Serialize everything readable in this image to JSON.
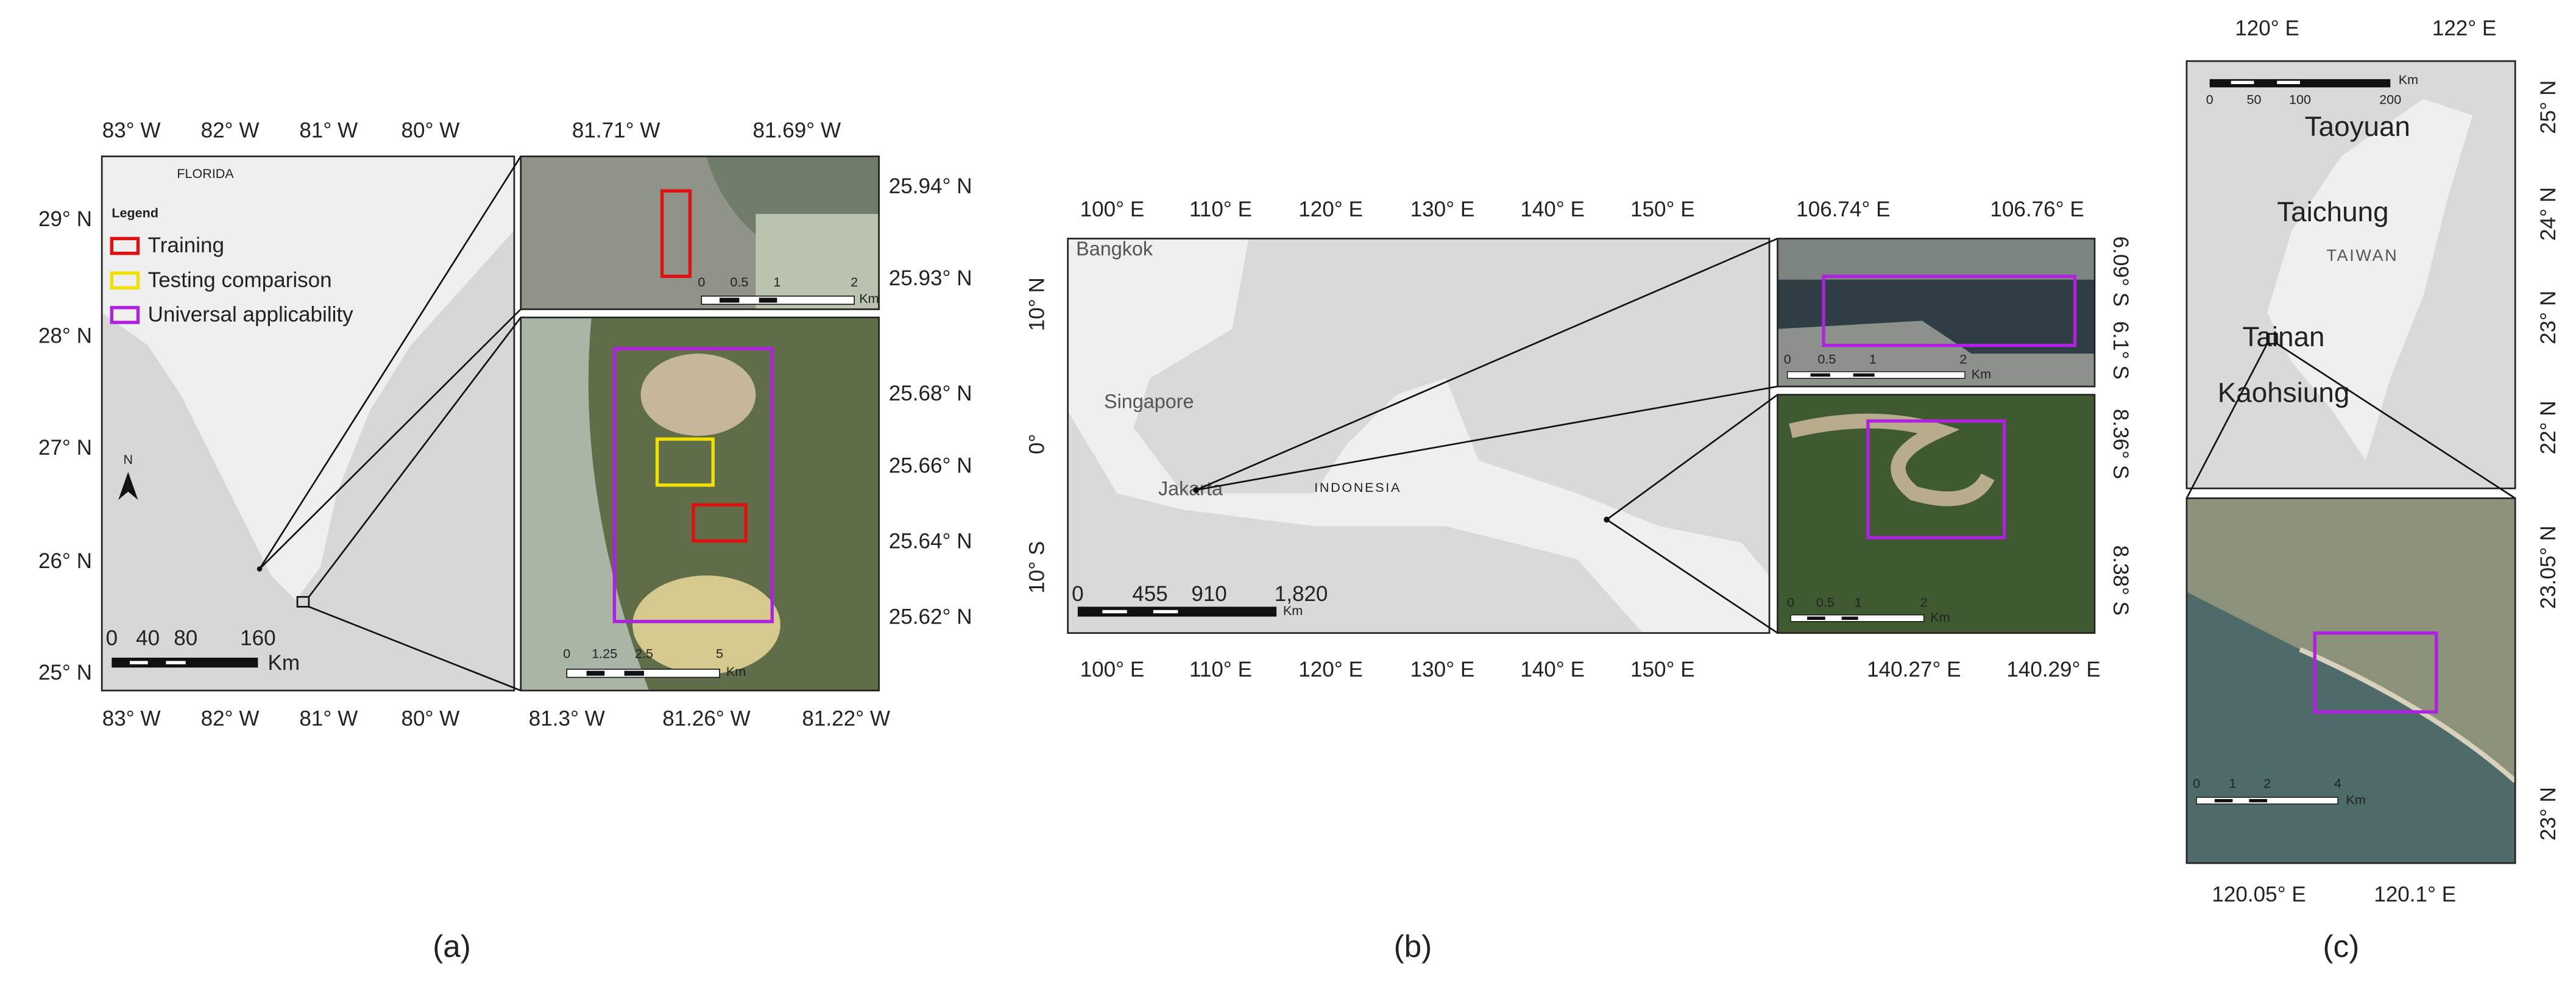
{
  "panels": {
    "a": {
      "caption": "(a)",
      "main": {
        "top_ticks": [
          "83° W",
          "82° W",
          "81° W",
          "80° W"
        ],
        "left_ticks": [
          "29° N",
          "28° N",
          "27° N",
          "26° N",
          "25° N"
        ],
        "bottom_ticks": [
          "83° W",
          "82° W",
          "81° W",
          "80° W"
        ],
        "place_labels": [
          "FLORIDA"
        ],
        "north": "N",
        "scale_bar": [
          "0",
          "40",
          "80",
          "160"
        ],
        "scale_unit": "Km",
        "legend": {
          "title": "Legend",
          "items": [
            "Training",
            "Testing comparison",
            "Universal applicability"
          ]
        }
      },
      "inset_top": {
        "top_ticks": [
          "81.71° W",
          "81.69° W"
        ],
        "right_ticks": [
          "25.94° N",
          "25.93° N"
        ],
        "scale_bar": [
          "0",
          "0.5",
          "1",
          "2"
        ],
        "scale_unit": "Km"
      },
      "inset_bottom": {
        "right_ticks": [
          "25.68° N",
          "25.66° N",
          "25.64° N",
          "25.62° N"
        ],
        "bottom_ticks": [
          "81.3° W",
          "81.26° W",
          "81.22° W"
        ],
        "scale_bar": [
          "0",
          "1.25",
          "2.5",
          "5"
        ],
        "scale_unit": "Km"
      }
    },
    "b": {
      "caption": "(b)",
      "main": {
        "top_ticks": [
          "100° E",
          "110° E",
          "120° E",
          "130° E",
          "140° E",
          "150° E"
        ],
        "left_ticks": [
          "10° N",
          "0°",
          "10° S"
        ],
        "bottom_ticks": [
          "100° E",
          "110° E",
          "120° E",
          "130° E",
          "140° E",
          "150° E"
        ],
        "place_labels": [
          "Bangkok",
          "Singapore",
          "Jakarta",
          "INDONESIA"
        ],
        "scale_bar": [
          "0",
          "455",
          "910",
          "1,820"
        ],
        "scale_unit": "Km"
      },
      "inset_top": {
        "top_ticks": [
          "106.74° E",
          "106.76° E"
        ],
        "right_ticks": [
          "6.09° S",
          "6.1° S"
        ],
        "scale_bar": [
          "0",
          "0.5",
          "1",
          "2"
        ],
        "scale_unit": "Km"
      },
      "inset_bottom": {
        "right_ticks": [
          "8.36° S",
          "8.38° S"
        ],
        "bottom_ticks": [
          "140.27° E",
          "140.29° E"
        ],
        "scale_bar": [
          "0",
          "0.5",
          "1",
          "2"
        ],
        "scale_unit": "Km"
      }
    },
    "c": {
      "caption": "(c)",
      "main": {
        "top_ticks": [
          "120° E",
          "122° E"
        ],
        "right_ticks": [
          "25° N",
          "24° N",
          "23° N",
          "22° N"
        ],
        "place_labels": [
          "Taoyuan",
          "Taichung",
          "TAIWAN",
          "Tainan",
          "Kaohsiung"
        ],
        "scale_bar": [
          "0",
          "50",
          "100",
          "200"
        ],
        "scale_unit": "Km"
      },
      "inset": {
        "right_ticks": [
          "23.05° N",
          "23° N"
        ],
        "bottom_ticks": [
          "120.05° E",
          "120.1° E"
        ],
        "scale_bar": [
          "0",
          "1",
          "2",
          "4"
        ],
        "scale_unit": "Km"
      }
    }
  }
}
